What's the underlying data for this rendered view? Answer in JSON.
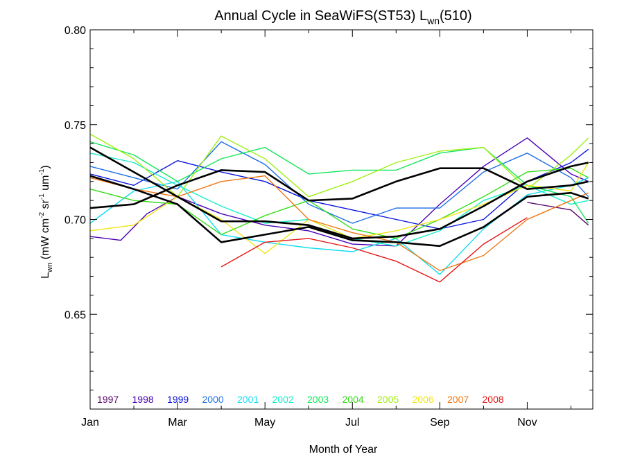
{
  "chart_data": {
    "type": "line",
    "title": {
      "main": "Annual Cycle in SeaWiFS(ST53) L",
      "sub": "wn",
      "tail": "(510)"
    },
    "xlabel": "Month of Year",
    "ylabel": {
      "base": "L",
      "sub": "wn",
      "units_open": " (mW cm",
      "sup1": "-2",
      "mid1": " sr",
      "sup2": "-1",
      "mid2": " um",
      "sup3": "-1",
      "units_close": ")"
    },
    "xlim": [
      1,
      12.5
    ],
    "ylim": [
      0.6,
      0.8
    ],
    "x_ticks": [
      {
        "value": 1,
        "label": "Jan"
      },
      {
        "value": 3,
        "label": "Mar"
      },
      {
        "value": 5,
        "label": "May"
      },
      {
        "value": 7,
        "label": "Jul"
      },
      {
        "value": 9,
        "label": "Sep"
      },
      {
        "value": 11,
        "label": "Nov"
      }
    ],
    "y_ticks": [
      {
        "value": 0.65,
        "label": "0.65"
      },
      {
        "value": 0.7,
        "label": "0.70"
      },
      {
        "value": 0.75,
        "label": "0.75"
      },
      {
        "value": 0.8,
        "label": "0.80"
      }
    ],
    "series": [
      {
        "name": "1997",
        "color": "#5a0a6e",
        "x": [
          11,
          12,
          12.4
        ],
        "y": [
          0.709,
          0.705,
          0.697
        ]
      },
      {
        "name": "1998",
        "color": "#4b00b4",
        "x": [
          1,
          1.7,
          2.3,
          3,
          4,
          5,
          6,
          7,
          8,
          9,
          10,
          11,
          12,
          12.4
        ],
        "y": [
          0.691,
          0.689,
          0.703,
          0.712,
          0.703,
          0.697,
          0.694,
          0.687,
          0.686,
          0.708,
          0.728,
          0.743,
          0.724,
          0.72
        ]
      },
      {
        "name": "1999",
        "color": "#0a14dc",
        "x": [
          1,
          2,
          3,
          4,
          5,
          6,
          7,
          8,
          9,
          10,
          11,
          12,
          12.4
        ],
        "y": [
          0.724,
          0.718,
          0.731,
          0.725,
          0.72,
          0.71,
          0.705,
          0.7,
          0.695,
          0.7,
          0.72,
          0.73,
          0.737
        ]
      },
      {
        "name": "2000",
        "color": "#1e6ee6",
        "x": [
          1,
          2,
          3,
          4,
          5,
          6,
          7,
          8,
          9,
          10,
          11,
          12,
          12.4
        ],
        "y": [
          0.728,
          0.722,
          0.716,
          0.741,
          0.729,
          0.708,
          0.698,
          0.706,
          0.706,
          0.725,
          0.735,
          0.722,
          0.712
        ]
      },
      {
        "name": "2001",
        "color": "#14dcf0",
        "x": [
          1,
          2,
          3,
          4,
          5,
          6,
          7,
          8,
          9,
          10,
          11,
          12,
          12.4
        ],
        "y": [
          0.698,
          0.715,
          0.72,
          0.692,
          0.688,
          0.685,
          0.683,
          0.69,
          0.671,
          0.695,
          0.713,
          0.718,
          0.722
        ]
      },
      {
        "name": "2002",
        "color": "#14f0c8",
        "x": [
          1,
          2,
          3,
          4,
          5,
          6,
          7,
          8,
          9,
          10,
          11,
          12,
          12.4
        ],
        "y": [
          0.735,
          0.73,
          0.718,
          0.707,
          0.698,
          0.7,
          0.69,
          0.686,
          0.694,
          0.71,
          0.718,
          0.708,
          0.71
        ]
      },
      {
        "name": "2003",
        "color": "#14e65a",
        "x": [
          1,
          2,
          3,
          4,
          5,
          6,
          7,
          8,
          9,
          10,
          11,
          12,
          12.4
        ],
        "y": [
          0.741,
          0.734,
          0.72,
          0.732,
          0.738,
          0.724,
          0.726,
          0.726,
          0.735,
          0.738,
          0.718,
          0.712,
          0.698
        ]
      },
      {
        "name": "2004",
        "color": "#32dc14",
        "x": [
          1,
          2,
          3,
          4,
          5,
          6,
          7,
          8,
          9,
          10,
          11,
          12,
          12.4
        ],
        "y": [
          0.716,
          0.71,
          0.708,
          0.692,
          0.702,
          0.71,
          0.695,
          0.69,
          0.7,
          0.712,
          0.725,
          0.727,
          0.722
        ]
      },
      {
        "name": "2005",
        "color": "#a0f014",
        "x": [
          1,
          2,
          3,
          4,
          5,
          6,
          7,
          8,
          9,
          10,
          11,
          12,
          12.4
        ],
        "y": [
          0.745,
          0.732,
          0.712,
          0.744,
          0.732,
          0.712,
          0.72,
          0.73,
          0.736,
          0.738,
          0.716,
          0.734,
          0.743
        ]
      },
      {
        "name": "2006",
        "color": "#f0e614",
        "x": [
          1,
          2,
          3,
          4,
          5,
          6,
          7,
          8,
          9,
          10,
          11,
          12,
          12.4
        ],
        "y": [
          0.694,
          0.697,
          0.712,
          0.7,
          0.682,
          0.7,
          0.69,
          0.694,
          0.7,
          0.708,
          0.718,
          0.715,
          0.73
        ]
      },
      {
        "name": "2007",
        "color": "#f07814",
        "x": [
          1,
          2,
          3,
          4,
          5,
          6,
          7,
          8,
          9,
          10,
          11,
          12,
          12.4
        ],
        "y": [
          0.722,
          0.716,
          0.712,
          0.72,
          0.723,
          0.7,
          0.693,
          0.688,
          0.673,
          0.681,
          0.7,
          0.71,
          0.714
        ]
      },
      {
        "name": "2008",
        "color": "#e61414",
        "x": [
          4,
          5,
          6,
          7,
          8,
          9,
          10,
          11
        ],
        "y": [
          0.675,
          0.688,
          0.69,
          0.685,
          0.678,
          0.667,
          0.687,
          0.701
        ]
      },
      {
        "name": "",
        "color": "#000000",
        "bold": true,
        "x": [
          1,
          2,
          3,
          4,
          5,
          6,
          7,
          8,
          9,
          10,
          11,
          12,
          12.4
        ],
        "y": [
          0.738,
          0.725,
          0.712,
          0.699,
          0.699,
          0.697,
          0.69,
          0.691,
          0.695,
          0.707,
          0.72,
          0.728,
          0.73
        ]
      },
      {
        "name": "",
        "color": "#000000",
        "bold": true,
        "x": [
          1,
          2,
          3,
          4,
          5,
          6,
          7,
          8,
          9,
          10,
          11,
          12,
          12.4
        ],
        "y": [
          0.706,
          0.708,
          0.718,
          0.726,
          0.725,
          0.71,
          0.711,
          0.72,
          0.727,
          0.727,
          0.716,
          0.718,
          0.72
        ]
      },
      {
        "name": "",
        "color": "#000000",
        "bold": true,
        "x": [
          1,
          2,
          3,
          4,
          5,
          6,
          7,
          8,
          9,
          10,
          11,
          12,
          12.4
        ],
        "y": [
          0.723,
          0.716,
          0.708,
          0.688,
          0.692,
          0.696,
          0.689,
          0.688,
          0.686,
          0.696,
          0.712,
          0.714,
          0.711
        ]
      }
    ],
    "legend": {
      "placement": "bottom-left",
      "entries": [
        {
          "label": "1997",
          "color": "#5a0a6e"
        },
        {
          "label": "1998",
          "color": "#4b00b4"
        },
        {
          "label": "1999",
          "color": "#0a14dc"
        },
        {
          "label": "2000",
          "color": "#1e6ee6"
        },
        {
          "label": "2001",
          "color": "#14dcf0"
        },
        {
          "label": "2002",
          "color": "#14f0c8"
        },
        {
          "label": "2003",
          "color": "#14e65a"
        },
        {
          "label": "2004",
          "color": "#32dc14"
        },
        {
          "label": "2005",
          "color": "#a0f014"
        },
        {
          "label": "2006",
          "color": "#f0e614"
        },
        {
          "label": "2007",
          "color": "#f07814"
        },
        {
          "label": "2008",
          "color": "#e61414"
        }
      ]
    },
    "grid": false
  }
}
